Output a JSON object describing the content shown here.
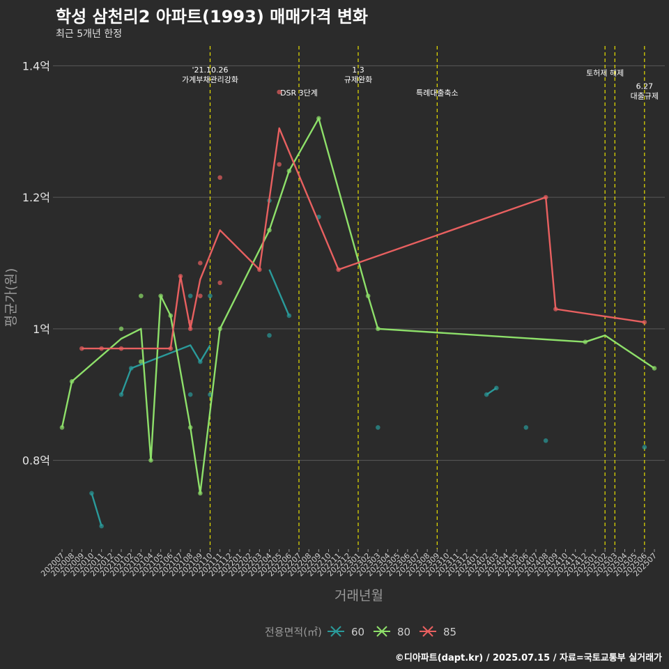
{
  "header": {
    "title": "학성 삼천리2 아파트(1993) 매매가격 변화",
    "subtitle": "최근 5개년 한정"
  },
  "caption": "©디아파트(dapt.kr) / 2025.07.15 / 자료=국토교통부 실거래가",
  "colors": {
    "background": "#2b2b2b",
    "grid": "#5a5a5a",
    "event_line": "#e8e000",
    "series_60": "#2a9a9a",
    "series_80": "#8ee06a",
    "series_85": "#e86060"
  },
  "chart_data": {
    "type": "line",
    "xlabel": "거래년월",
    "ylabel": "평균가(원)",
    "ylim": [
      0.665,
      1.43
    ],
    "y_ticks": [
      {
        "value": 0.8,
        "label": "0.8억"
      },
      {
        "value": 1.0,
        "label": "1억"
      },
      {
        "value": 1.2,
        "label": "1.2억"
      },
      {
        "value": 1.4,
        "label": "1.4억"
      }
    ],
    "grid": true,
    "legend_title": "전용면적(㎡)",
    "legend_position": "bottom",
    "x": [
      "202007",
      "202008",
      "202009",
      "202010",
      "202011",
      "202012",
      "202101",
      "202102",
      "202103",
      "202104",
      "202105",
      "202106",
      "202107",
      "202108",
      "202109",
      "202110",
      "202111",
      "202112",
      "202201",
      "202202",
      "202203",
      "202204",
      "202205",
      "202206",
      "202207",
      "202208",
      "202209",
      "202210",
      "202211",
      "202212",
      "202301",
      "202302",
      "202303",
      "202304",
      "202305",
      "202306",
      "202307",
      "202308",
      "202309",
      "202310",
      "202311",
      "202312",
      "202401",
      "202402",
      "202403",
      "202404",
      "202405",
      "202406",
      "202407",
      "202408",
      "202409",
      "202410",
      "202411",
      "202412",
      "202501",
      "202502",
      "202503",
      "202504",
      "202505",
      "202506",
      "202507"
    ],
    "series": [
      {
        "name": "60",
        "color": "#2a9a9a",
        "lines": [
          [
            [
              "202010",
              0.75
            ],
            [
              "202011",
              0.7
            ]
          ],
          [
            [
              "202101",
              0.9
            ],
            [
              "202102",
              0.94
            ],
            [
              "202108",
              0.975
            ],
            [
              "202109",
              0.95
            ],
            [
              "202110",
              0.975
            ]
          ],
          [
            [
              "202204",
              1.09
            ],
            [
              "202206",
              1.02
            ]
          ],
          [
            [
              "202402",
              0.9
            ],
            [
              "202403",
              0.91
            ]
          ]
        ],
        "points": [
          [
            "202010",
            0.75
          ],
          [
            "202011",
            0.7
          ],
          [
            "202101",
            0.9
          ],
          [
            "202102",
            0.94
          ],
          [
            "202108",
            1.05
          ],
          [
            "202108",
            0.9
          ],
          [
            "202109",
            0.95
          ],
          [
            "202110",
            1.05
          ],
          [
            "202110",
            0.9
          ],
          [
            "202204",
            1.195
          ],
          [
            "202204",
            0.99
          ],
          [
            "202206",
            1.02
          ],
          [
            "202209",
            1.17
          ],
          [
            "202303",
            0.85
          ],
          [
            "202402",
            0.9
          ],
          [
            "202403",
            0.91
          ],
          [
            "202406",
            0.85
          ],
          [
            "202408",
            0.83
          ],
          [
            "202506",
            0.82
          ]
        ]
      },
      {
        "name": "80",
        "color": "#8ee06a",
        "lines": [
          [
            [
              "202007",
              0.85
            ],
            [
              "202008",
              0.92
            ],
            [
              "202101",
              0.985
            ],
            [
              "202103",
              1.0
            ],
            [
              "202104",
              0.8
            ],
            [
              "202105",
              1.05
            ],
            [
              "202106",
              1.02
            ],
            [
              "202108",
              0.85
            ],
            [
              "202109",
              0.75
            ],
            [
              "202111",
              1.0
            ],
            [
              "202204",
              1.15
            ],
            [
              "202206",
              1.24
            ],
            [
              "202209",
              1.32
            ],
            [
              "202302",
              1.05
            ],
            [
              "202303",
              1.0
            ],
            [
              "202412",
              0.98
            ],
            [
              "202502",
              0.99
            ],
            [
              "202507",
              0.94
            ]
          ]
        ],
        "points": [
          [
            "202007",
            0.85
          ],
          [
            "202008",
            0.92
          ],
          [
            "202101",
            1.0
          ],
          [
            "202103",
            1.05
          ],
          [
            "202103",
            0.95
          ],
          [
            "202104",
            0.8
          ],
          [
            "202105",
            1.05
          ],
          [
            "202106",
            1.02
          ],
          [
            "202108",
            0.85
          ],
          [
            "202109",
            0.75
          ],
          [
            "202111",
            1.0
          ],
          [
            "202204",
            1.15
          ],
          [
            "202206",
            1.24
          ],
          [
            "202209",
            1.32
          ],
          [
            "202302",
            1.05
          ],
          [
            "202303",
            1.0
          ],
          [
            "202412",
            0.98
          ],
          [
            "202507",
            0.94
          ]
        ]
      },
      {
        "name": "85",
        "color": "#e86060",
        "lines": [
          [
            [
              "202009",
              0.97
            ],
            [
              "202106",
              0.97
            ],
            [
              "202107",
              1.08
            ],
            [
              "202108",
              1.0
            ],
            [
              "202109",
              1.075
            ],
            [
              "202111",
              1.15
            ],
            [
              "202203",
              1.09
            ],
            [
              "202205",
              1.305
            ],
            [
              "202211",
              1.09
            ],
            [
              "202408",
              1.2
            ],
            [
              "202409",
              1.03
            ],
            [
              "202506",
              1.01
            ]
          ]
        ],
        "points": [
          [
            "202009",
            0.97
          ],
          [
            "202011",
            0.97
          ],
          [
            "202101",
            0.97
          ],
          [
            "202106",
            0.97
          ],
          [
            "202107",
            1.08
          ],
          [
            "202108",
            1.0
          ],
          [
            "202108",
            1.01
          ],
          [
            "202109",
            1.1
          ],
          [
            "202109",
            1.05
          ],
          [
            "202111",
            1.23
          ],
          [
            "202111",
            1.07
          ],
          [
            "202203",
            1.09
          ],
          [
            "202205",
            1.36
          ],
          [
            "202205",
            1.25
          ],
          [
            "202211",
            1.09
          ],
          [
            "202408",
            1.2
          ],
          [
            "202409",
            1.03
          ],
          [
            "202506",
            1.01
          ]
        ]
      }
    ],
    "events": [
      {
        "x": "202110",
        "label": "'21.10.26\n가계부채관리강화",
        "label_y": 1.39
      },
      {
        "x": "202207",
        "label": "DSR 3단계",
        "label_y": 1.355
      },
      {
        "x": "202301",
        "label": "1.3\n규제완화",
        "label_y": 1.39
      },
      {
        "x": "202309",
        "label": "특례대출축소",
        "label_y": 1.355
      },
      {
        "x": "202502",
        "label": "토허제 해제",
        "label_y": 1.385,
        "label_dx": 0.0
      },
      {
        "x": "202503",
        "label": "",
        "label_y": 1.385
      },
      {
        "x": "202506",
        "label": "6.27\n대출규제",
        "label_y": 1.365
      }
    ]
  }
}
